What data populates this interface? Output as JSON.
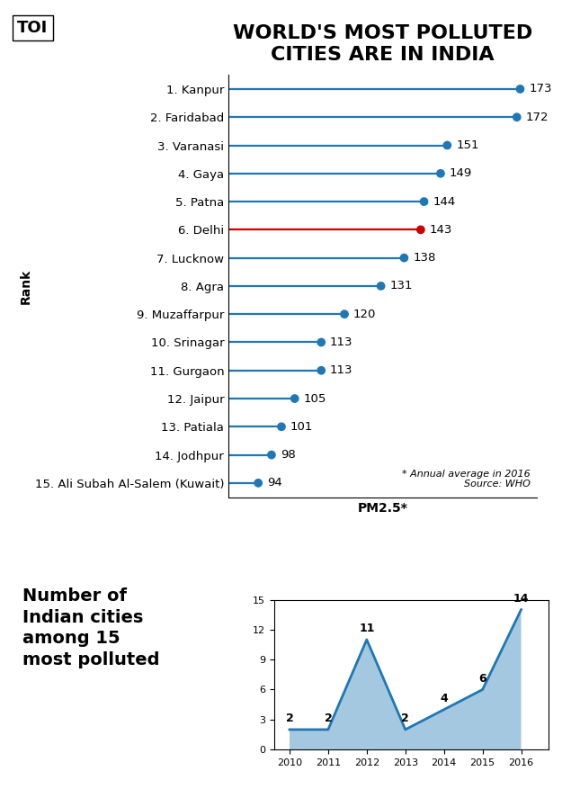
{
  "chart_data": [
    {
      "type": "dot",
      "orientation": "horizontal",
      "title": "WORLD'S MOST POLLUTED\nCITIES ARE IN INDIA",
      "categories": [
        "1. Kanpur",
        "2. Faridabad",
        "3. Varanasi",
        "4. Gaya",
        "5. Patna",
        "6. Delhi",
        "7. Lucknow",
        "8. Agra",
        "9. Muzaffarpur",
        "10. Srinagar",
        "11. Gurgaon",
        "12. Jaipur",
        "13. Patiala",
        "14. Jodhpur",
        "15. Ali Subah Al-Salem (Kuwait)"
      ],
      "values": [
        173,
        172,
        151,
        149,
        144,
        143,
        138,
        131,
        120,
        113,
        113,
        105,
        101,
        98,
        94
      ],
      "colors": [
        "#1f77b4",
        "#1f77b4",
        "#1f77b4",
        "#1f77b4",
        "#1f77b4",
        "#cc0000",
        "#1f77b4",
        "#1f77b4",
        "#1f77b4",
        "#1f77b4",
        "#1f77b4",
        "#1f77b4",
        "#1f77b4",
        "#1f77b4",
        "#1f77b4"
      ],
      "xlim": [
        85,
        178
      ],
      "xlabel": "PM2.5*",
      "ylabel": "Rank",
      "annotations": [
        "TOI",
        "* Annual average in 2016\nSource: WHO"
      ],
      "data_labels": true,
      "tick_labels": "y",
      "grid": false
    },
    {
      "type": "area",
      "title": "Number of\nIndian cities\namong 15\nmost polluted",
      "x": [
        2010,
        2011,
        2012,
        2013,
        2014,
        2015,
        2016
      ],
      "values": [
        2,
        2,
        11,
        2,
        4,
        6,
        14
      ],
      "xlim": [
        2009.6,
        2016.7
      ],
      "xticks": [
        2010,
        2011,
        2012,
        2013,
        2014,
        2015,
        2016
      ],
      "ylim": [
        0,
        15
      ],
      "yticks": [
        0,
        3,
        6,
        9,
        12,
        15
      ],
      "data_labels": true,
      "grid": false
    }
  ]
}
